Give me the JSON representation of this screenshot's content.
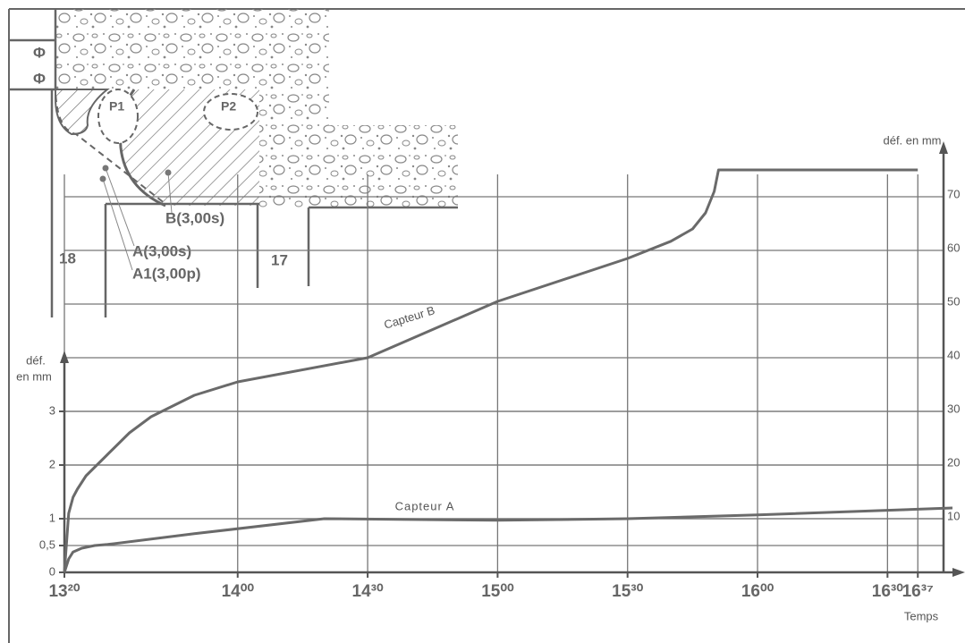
{
  "chart_data": {
    "type": "line",
    "annotations": [
      "Capteur B",
      "Capteur A"
    ],
    "ylabel": [
      "déf.",
      "en mm"
    ],
    "y2label": "déf. en mm",
    "xlabel": "Temps",
    "xlim": [
      800,
      1005
    ],
    "xticks": [
      {
        "value": 800,
        "label": "13²⁰"
      },
      {
        "value": 840,
        "label": "14⁰⁰"
      },
      {
        "value": 870,
        "label": "14³⁰"
      },
      {
        "value": 900,
        "label": "15⁰⁰"
      },
      {
        "value": 930,
        "label": "15³⁰"
      },
      {
        "value": 960,
        "label": "16⁰⁰"
      },
      {
        "value": 990,
        "label": "16³⁰"
      },
      {
        "value": 997,
        "label": "16³⁷"
      }
    ],
    "ylim": [
      0,
      3.9
    ],
    "yticks": [
      0,
      {
        "value": 0.5,
        "label": "0,5"
      },
      1,
      2,
      3
    ],
    "y2lim": [
      0,
      78
    ],
    "y2ticks": [
      10,
      20,
      30,
      40,
      50,
      60,
      70
    ],
    "grid": true,
    "series": [
      {
        "name": "Capteur B",
        "axis": "y2",
        "color": "#6a6a6a",
        "x": [
          800,
          801,
          802,
          803,
          805,
          810,
          815,
          820,
          830,
          840,
          870,
          900,
          930,
          940,
          945,
          948,
          950,
          951,
          997
        ],
        "values": [
          0,
          11,
          14,
          15.5,
          18,
          22,
          26,
          29,
          33,
          35.5,
          40,
          50.5,
          58.5,
          61.7,
          64,
          67,
          71,
          75,
          75
        ]
      },
      {
        "name": "Capteur A",
        "color": "#6a6a6a",
        "x": [
          800,
          801,
          802,
          804,
          807,
          810,
          830,
          860,
          900,
          930,
          960,
          1005
        ],
        "values": [
          0,
          0.25,
          0.38,
          0.45,
          0.5,
          0.52,
          0.72,
          1.0,
          0.97,
          1.0,
          1.07,
          1.2
        ]
      }
    ]
  },
  "diagram": {
    "labels": [
      "18",
      "17",
      "P1",
      "P2",
      "B(3,00s)",
      "A(3,00s)",
      "A1(3,00p)"
    ],
    "symbols": [
      "Φ",
      "Φ"
    ]
  }
}
